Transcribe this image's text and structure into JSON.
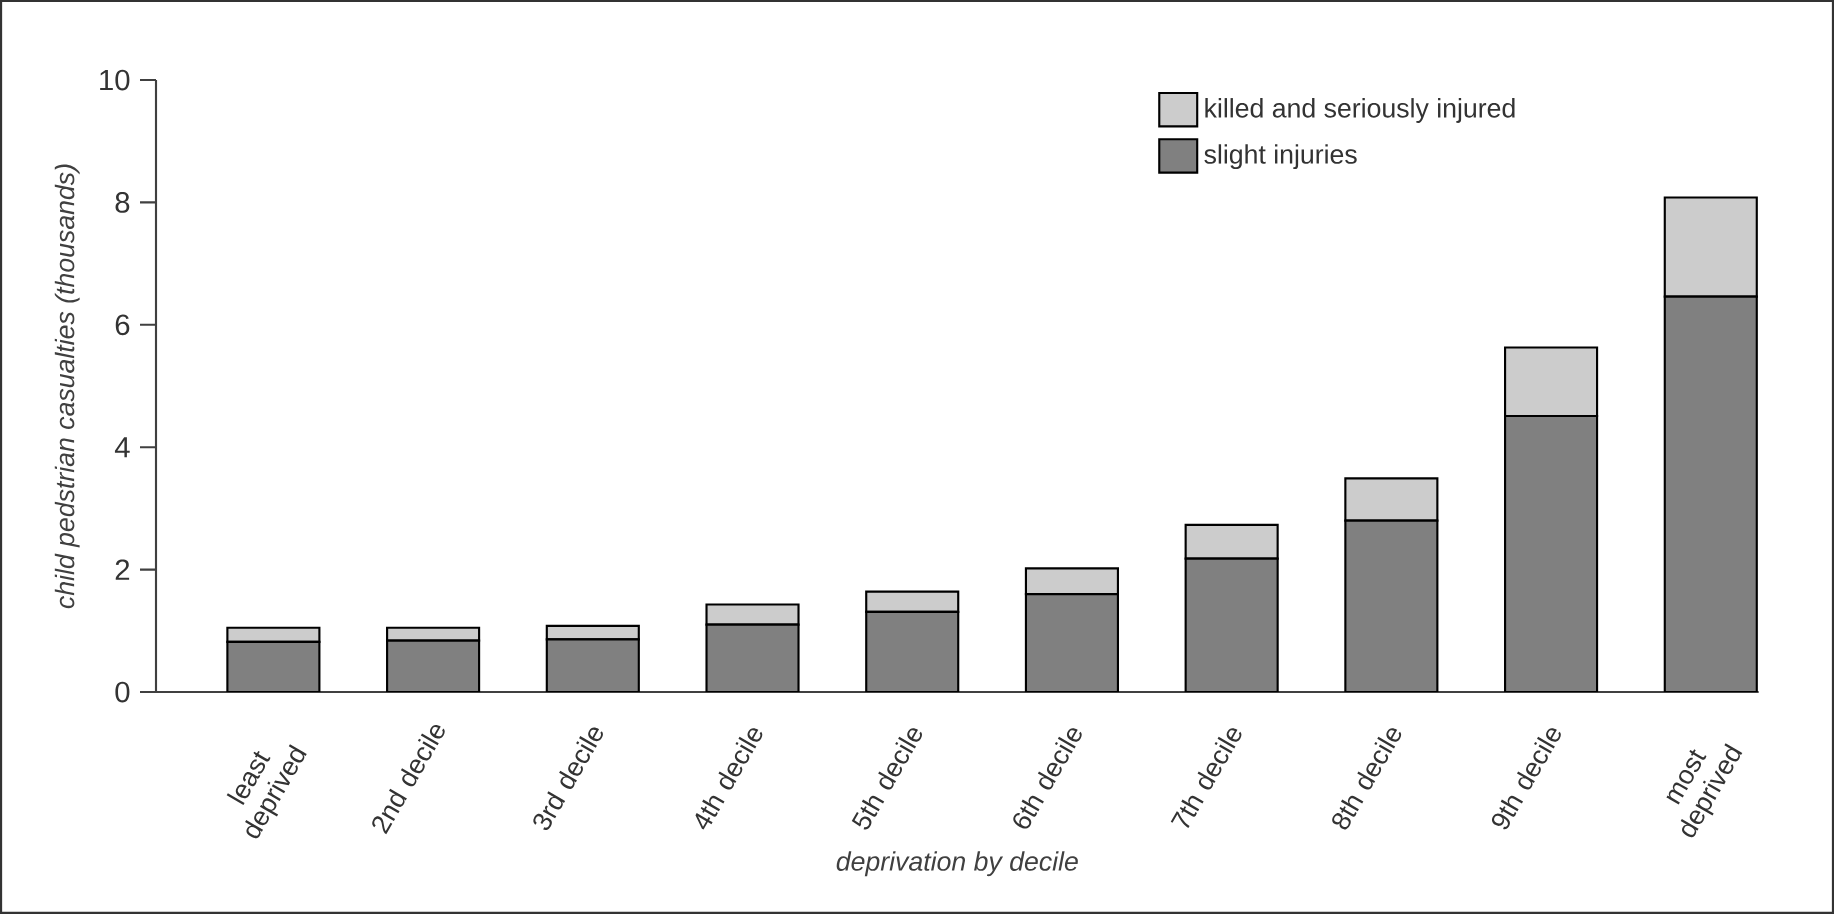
{
  "chart_data": {
    "type": "bar",
    "stacked": true,
    "xlabel": "deprivation by decile",
    "ylabel": "child pedstrian casualties (thousands)",
    "categories": [
      "least deprived",
      "2nd decile",
      "3rd decile",
      "4th decile",
      "5th decile",
      "6th decile",
      "7th decile",
      "8th decile",
      "9th decile",
      "most deprived"
    ],
    "series": [
      {
        "name": "slight injuries",
        "color": "#808080",
        "values": [
          0.82,
          0.84,
          0.86,
          1.1,
          1.31,
          1.6,
          2.18,
          2.8,
          4.51,
          6.46
        ]
      },
      {
        "name": "killed and seriously injured",
        "color": "#cccccc",
        "values": [
          0.23,
          0.21,
          0.22,
          0.33,
          0.33,
          0.42,
          0.55,
          0.69,
          1.12,
          1.62
        ]
      }
    ],
    "ylim": [
      0,
      10
    ],
    "yticks": [
      0,
      2,
      4,
      6,
      8,
      10
    ],
    "grid": false,
    "legend": "top right"
  }
}
